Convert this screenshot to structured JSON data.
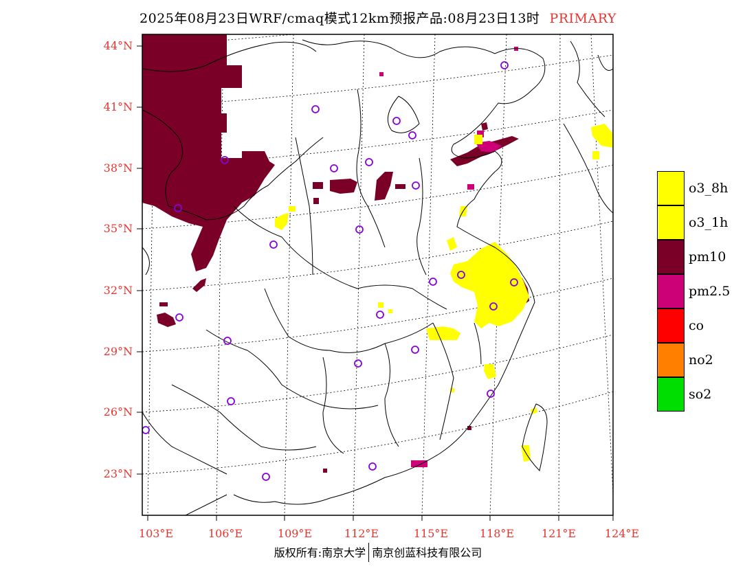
{
  "header": {
    "title": "2025年08月23日WRF/cmaq模式12km预报产品:08月23日13时",
    "variant": "PRIMARY"
  },
  "map": {
    "lat_ticks": [
      "44°N",
      "41°N",
      "38°N",
      "35°N",
      "32°N",
      "29°N",
      "26°N",
      "23°N"
    ],
    "lon_ticks": [
      "103°E",
      "106°E",
      "109°E",
      "112°E",
      "115°E",
      "118°E",
      "121°E",
      "124°E"
    ],
    "pollutant_colors": {
      "o3_8h": "#ffff00",
      "o3_1h": "#ffff00",
      "pm10": "#7a0028",
      "pm2.5": "#cc0077",
      "co": "#ff0000",
      "no2": "#ff7f00",
      "so2": "#00dd00"
    },
    "station_marker_color": "#8800dd"
  },
  "legend": {
    "items": [
      {
        "label": "o3_8h",
        "color": "#ffff00"
      },
      {
        "label": "o3_1h",
        "color": "#ffff00"
      },
      {
        "label": "pm10",
        "color": "#7a0028"
      },
      {
        "label": "pm2.5",
        "color": "#cc0077"
      },
      {
        "label": "co",
        "color": "#ff0000"
      },
      {
        "label": "no2",
        "color": "#ff7f00"
      },
      {
        "label": "so2",
        "color": "#00dd00"
      }
    ]
  },
  "footer": {
    "left": "版权所有:南京大学",
    "right": "南京创蓝科技有限公司"
  }
}
